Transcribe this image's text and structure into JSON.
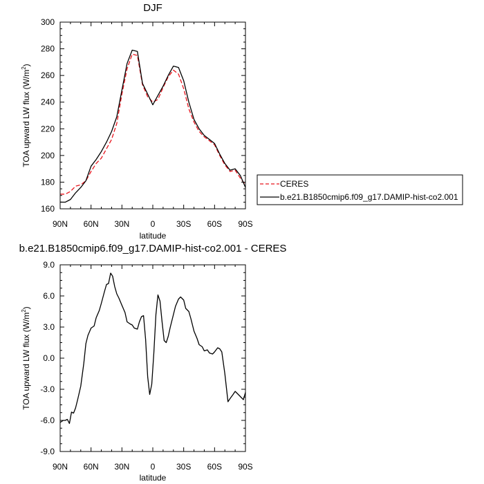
{
  "chart_data": [
    {
      "type": "line",
      "title": "DJF",
      "xlabel": "latitude",
      "ylabel": "TOA upward LW flux (W/m",
      "ylabel_sup": "2",
      "ylabel_close": ")",
      "xlim": [
        90,
        -90
      ],
      "ylim": [
        160,
        300
      ],
      "x_tick_values": [
        90,
        60,
        30,
        0,
        -30,
        -60,
        -90
      ],
      "x_tick_labels": [
        "90N",
        "60N",
        "30N",
        "0",
        "30S",
        "60S",
        "90S"
      ],
      "y_tick_values": [
        160,
        180,
        200,
        220,
        240,
        260,
        280,
        300
      ],
      "y_tick_labels": [
        "160",
        "180",
        "200",
        "220",
        "240",
        "260",
        "280",
        "300"
      ],
      "legend_placement": "outside-right",
      "series": [
        {
          "name": "CERES",
          "color": "#e8141c",
          "dash": "dashed",
          "x": [
            90,
            85,
            80,
            75,
            70,
            65,
            60,
            55,
            50,
            45,
            40,
            35,
            30,
            25,
            20,
            15,
            10,
            5,
            0,
            -5,
            -10,
            -15,
            -20,
            -25,
            -30,
            -35,
            -40,
            -45,
            -50,
            -55,
            -60,
            -65,
            -70,
            -75,
            -80,
            -85,
            -90
          ],
          "y": [
            171,
            171,
            173,
            177,
            178,
            181,
            188,
            194,
            198,
            205,
            212,
            224,
            246,
            265,
            276,
            275,
            253,
            244,
            240,
            242,
            251,
            259,
            264,
            261,
            250,
            235,
            225,
            218,
            214,
            211,
            208,
            200,
            193,
            188,
            189,
            183,
            178
          ]
        },
        {
          "name": "b.e21.B1850cmip6.f09_g17.DAMIP-hist-co2.001",
          "color": "#000000",
          "dash": "solid",
          "x": [
            90,
            85,
            80,
            75,
            70,
            65,
            60,
            55,
            50,
            45,
            40,
            35,
            30,
            25,
            20,
            15,
            10,
            5,
            0,
            -5,
            -10,
            -15,
            -20,
            -25,
            -30,
            -35,
            -40,
            -45,
            -50,
            -55,
            -60,
            -65,
            -70,
            -75,
            -80,
            -85,
            -90
          ],
          "y": [
            165,
            165,
            167,
            172,
            176,
            181,
            192,
            197,
            203,
            210,
            218,
            229,
            249,
            269,
            279,
            278,
            254,
            246,
            238,
            245,
            252,
            260,
            267,
            266,
            256,
            240,
            227,
            220,
            215,
            212,
            209,
            201,
            194,
            189,
            190,
            185,
            176
          ]
        }
      ]
    },
    {
      "type": "line",
      "title": "b.e21.B1850cmip6.f09_g17.DAMIP-hist-co2.001 - CERES",
      "xlabel": "latitude",
      "ylabel": "TOA upward LW flux (W/m",
      "ylabel_sup": "2",
      "ylabel_close": ")",
      "xlim": [
        90,
        -90
      ],
      "ylim": [
        -9,
        9
      ],
      "x_tick_values": [
        90,
        60,
        30,
        0,
        -30,
        -60,
        -90
      ],
      "x_tick_labels": [
        "90N",
        "60N",
        "30N",
        "0",
        "30S",
        "60S",
        "90S"
      ],
      "y_tick_values": [
        -9,
        -6,
        -3,
        0,
        3,
        6,
        9
      ],
      "y_tick_labels": [
        "-9.0",
        "-6.0",
        "-3.0",
        "0.0",
        "3.0",
        "6.0",
        "9.0"
      ],
      "series": [
        {
          "color": "#000000",
          "dash": "solid",
          "x": [
            90,
            87,
            85,
            83,
            81,
            79,
            77,
            75,
            73,
            70,
            67,
            65,
            63,
            60,
            57,
            55,
            52,
            50,
            47,
            45,
            43,
            41,
            39,
            37,
            35,
            33,
            30,
            27,
            25,
            22,
            20,
            18,
            15,
            13,
            11,
            9,
            7,
            5,
            3,
            1,
            -1,
            -3,
            -5,
            -7,
            -9,
            -11,
            -13,
            -15,
            -17,
            -20,
            -22,
            -25,
            -27,
            -30,
            -32,
            -35,
            -37,
            -40,
            -43,
            -45,
            -48,
            -50,
            -53,
            -55,
            -58,
            -60,
            -63,
            -65,
            -67,
            -70,
            -73,
            -75,
            -78,
            -80,
            -82,
            -84,
            -86,
            -88,
            -90
          ],
          "y": [
            -6.2,
            -6.0,
            -6.0,
            -5.9,
            -6.3,
            -5.2,
            -5.3,
            -4.8,
            -4.0,
            -2.7,
            -0.5,
            1.4,
            2.2,
            2.9,
            3.1,
            3.9,
            4.6,
            5.3,
            6.4,
            7.1,
            7.2,
            8.2,
            7.9,
            6.9,
            6.2,
            5.8,
            5.1,
            4.4,
            3.5,
            3.3,
            3.2,
            2.9,
            2.8,
            3.5,
            4.0,
            4.1,
            1.8,
            -1.8,
            -3.5,
            -2.5,
            0.5,
            4.2,
            6.1,
            5.5,
            3.5,
            1.7,
            1.5,
            2.1,
            3.0,
            4.2,
            5.0,
            5.7,
            5.9,
            5.6,
            4.8,
            4.5,
            3.8,
            2.6,
            1.9,
            1.3,
            1.1,
            0.7,
            0.8,
            0.5,
            0.4,
            0.6,
            1.0,
            0.9,
            0.6,
            -1.5,
            -4.2,
            -3.9,
            -3.5,
            -3.2,
            -3.4,
            -3.6,
            -3.8,
            -4.0,
            -3.3
          ]
        }
      ]
    }
  ]
}
